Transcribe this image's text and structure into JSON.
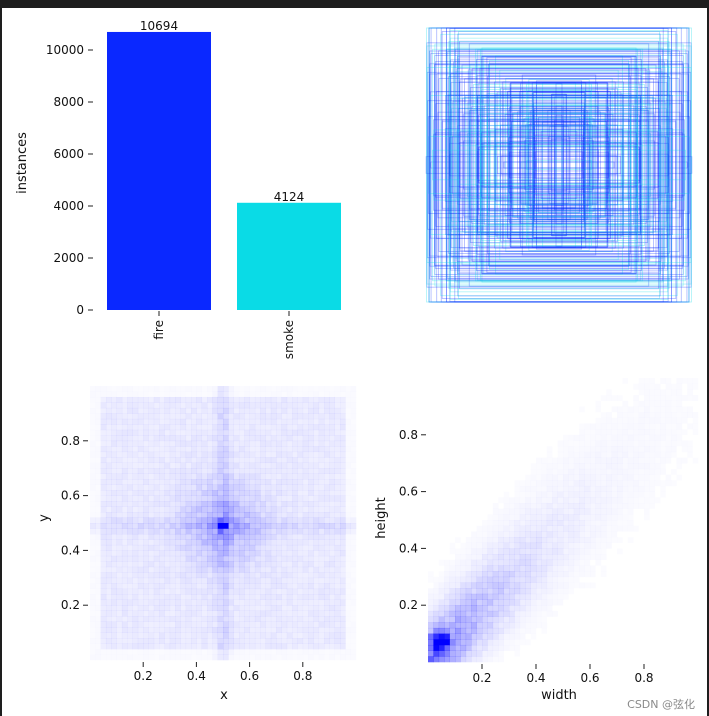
{
  "watermark": "CSDN @弦化",
  "chart_data": [
    {
      "type": "bar",
      "categories": [
        "fire",
        "smoke"
      ],
      "values": [
        10694,
        4124
      ],
      "colors": [
        "#0a28ff",
        "#0adbe6"
      ],
      "xlabel": "",
      "ylabel": "instances",
      "ylim": [
        0,
        11000
      ],
      "yticks": [
        0,
        2000,
        4000,
        6000,
        8000,
        10000
      ],
      "data_labels": [
        "10694",
        "4124"
      ]
    },
    {
      "type": "scatter",
      "description_kind": "bounding-box overlay (rectangles centered at 0.5,0.5)",
      "colors": [
        "#0a28ff",
        "#0adbe6"
      ],
      "axes": "off"
    },
    {
      "type": "heatmap",
      "xlabel": "x",
      "ylabel": "y",
      "xlim": [
        0,
        1
      ],
      "ylim": [
        0,
        1
      ],
      "xticks": [
        "0.2",
        "0.4",
        "0.6",
        "0.8"
      ],
      "yticks": [
        "0.2",
        "0.4",
        "0.6",
        "0.8"
      ],
      "color": "#0000ff",
      "peak": [
        0.5,
        0.49
      ]
    },
    {
      "type": "heatmap",
      "xlabel": "width",
      "ylabel": "height",
      "xlim": [
        0,
        1
      ],
      "ylim": [
        0,
        1
      ],
      "xticks": [
        "0.2",
        "0.4",
        "0.6",
        "0.8"
      ],
      "yticks": [
        "0.2",
        "0.4",
        "0.6",
        "0.8"
      ],
      "color": "#0000ff",
      "peak": [
        0.05,
        0.07
      ]
    }
  ]
}
